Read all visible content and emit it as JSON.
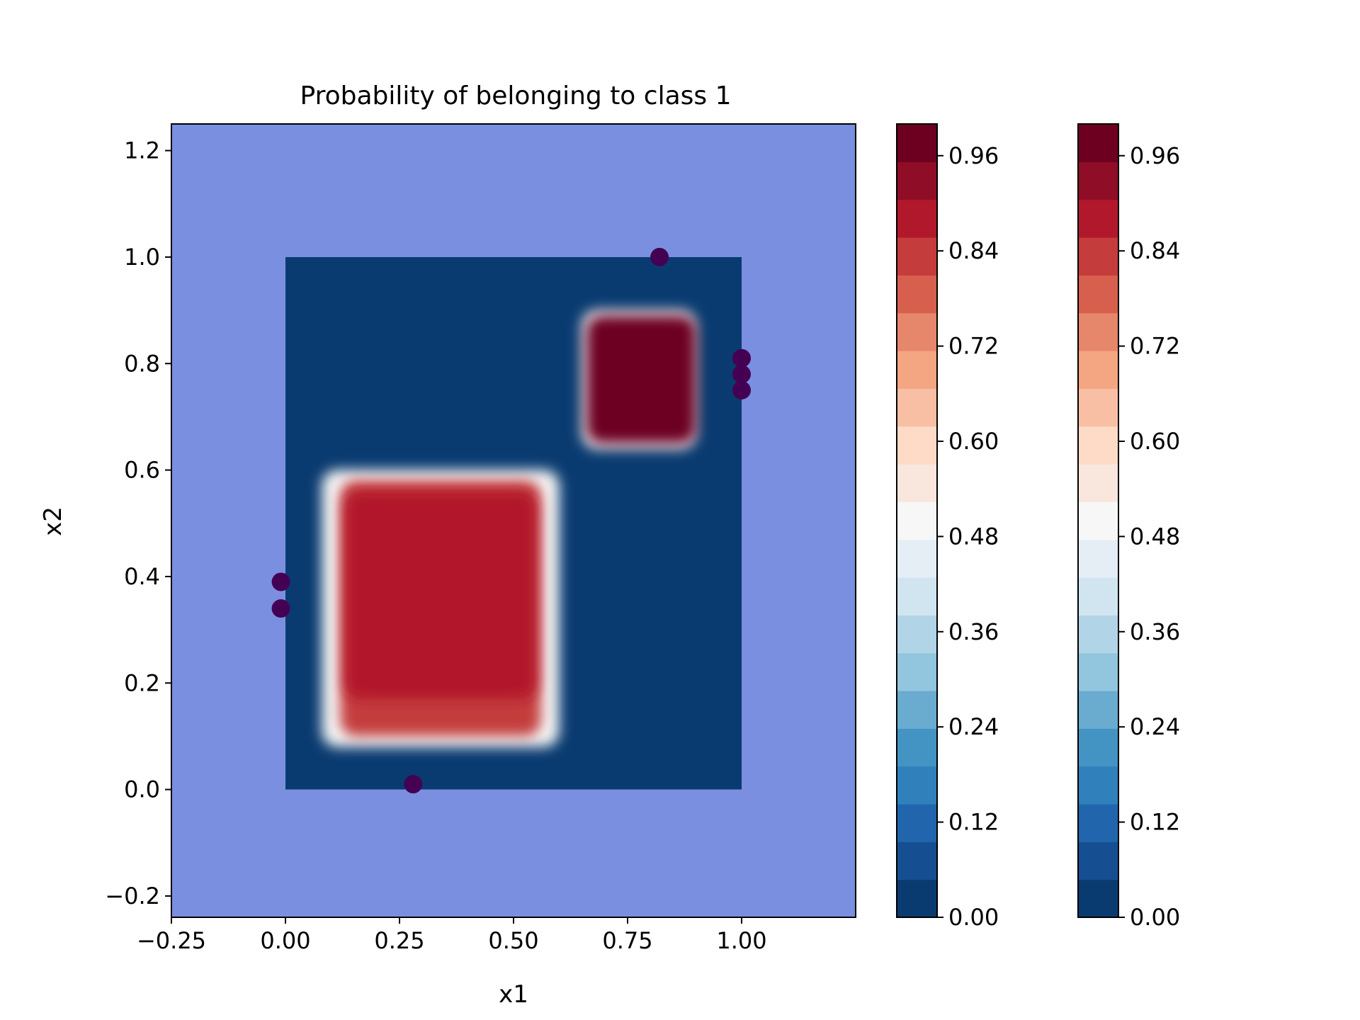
{
  "chart_data": {
    "type": "heatmap",
    "title": "Probability of belonging to class 1",
    "xlabel": "x1",
    "ylabel": "x2",
    "xlim": [
      -0.25,
      1.25
    ],
    "ylim": [
      -0.24,
      1.25
    ],
    "x_ticks": [
      -0.25,
      0.0,
      0.25,
      0.5,
      0.75,
      1.0
    ],
    "x_tick_labels": [
      "−0.25",
      "0.00",
      "0.25",
      "0.50",
      "0.75",
      "1.00"
    ],
    "y_ticks": [
      -0.2,
      0.0,
      0.2,
      0.4,
      0.6,
      0.8,
      1.0,
      1.2
    ],
    "y_tick_labels": [
      "−0.2",
      "0.0",
      "0.2",
      "0.4",
      "0.6",
      "0.8",
      "1.0",
      "1.2"
    ],
    "grid": false,
    "background_region_color": "#7b8fe0",
    "grid_extent": {
      "x": [
        0.0,
        1.0
      ],
      "y": [
        0.0,
        1.0
      ]
    },
    "background_probability": 0.02,
    "regions": [
      {
        "x": [
          0.08,
          0.6
        ],
        "y": [
          0.08,
          0.6
        ],
        "probability": 0.5
      },
      {
        "x": [
          0.12,
          0.56
        ],
        "y": [
          0.1,
          0.58
        ],
        "probability": 0.82
      },
      {
        "x": [
          0.13,
          0.55
        ],
        "y": [
          0.17,
          0.56
        ],
        "probability": 0.88
      },
      {
        "x": [
          0.65,
          0.9
        ],
        "y": [
          0.64,
          0.9
        ],
        "probability": 0.5
      },
      {
        "x": [
          0.66,
          0.9
        ],
        "y": [
          0.65,
          0.89
        ],
        "probability": 1.0
      }
    ],
    "points": [
      {
        "x": 0.82,
        "y": 1.0
      },
      {
        "x": 1.0,
        "y": 0.81
      },
      {
        "x": 1.0,
        "y": 0.78
      },
      {
        "x": 1.0,
        "y": 0.75
      },
      {
        "x": -0.01,
        "y": 0.39
      },
      {
        "x": -0.01,
        "y": 0.34
      },
      {
        "x": 0.28,
        "y": 0.01
      }
    ],
    "point_color": "#440154",
    "colormap": "RdBu_r",
    "colorbars": [
      {
        "range": [
          0.0,
          1.0
        ],
        "ticks": [
          0.0,
          0.12,
          0.24,
          0.36,
          0.48,
          0.6,
          0.72,
          0.84,
          0.96
        ],
        "tick_labels": [
          "0.00",
          "0.12",
          "0.24",
          "0.36",
          "0.48",
          "0.60",
          "0.72",
          "0.84",
          "0.96"
        ]
      },
      {
        "range": [
          0.0,
          1.0
        ],
        "ticks": [
          0.0,
          0.12,
          0.24,
          0.36,
          0.48,
          0.6,
          0.72,
          0.84,
          0.96
        ],
        "tick_labels": [
          "0.00",
          "0.12",
          "0.24",
          "0.36",
          "0.48",
          "0.60",
          "0.72",
          "0.84",
          "0.96"
        ]
      }
    ],
    "colorbar_levels": [
      "#0a3b70",
      "#154f91",
      "#2166ac",
      "#3080bb",
      "#4393c3",
      "#6aacd0",
      "#92c5de",
      "#b1d4e7",
      "#d1e5f0",
      "#e4eef4",
      "#f7f7f7",
      "#f9e6dd",
      "#fddbc7",
      "#f8bfa4",
      "#f4a582",
      "#e6866a",
      "#d6604d",
      "#c43c3c",
      "#b2182b",
      "#8f0d26",
      "#6d0021"
    ]
  }
}
